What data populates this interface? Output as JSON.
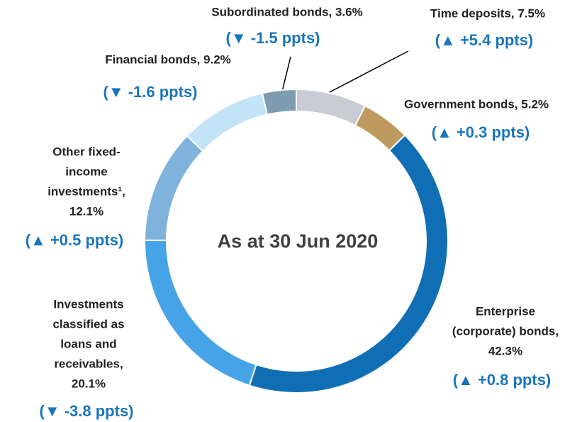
{
  "chart_data": {
    "type": "donut",
    "center_label": "As at 30 Jun 2020",
    "values": [
      7.5,
      5.2,
      42.3,
      20.1,
      12.1,
      9.2,
      3.6
    ],
    "value_labels": [
      [
        "Time deposits, 7.5%"
      ],
      [
        "Government bonds, 5.2%"
      ],
      [
        "Enterprise",
        "(corporate) bonds,",
        "42.3%"
      ],
      [
        "Investments",
        "classified as",
        "loans and",
        "receivables,",
        "20.1%"
      ],
      [
        "Other fixed-",
        "income",
        "investments¹,",
        "12.1%"
      ],
      [
        "Financial bonds, 9.2%"
      ],
      [
        "Subordinated bonds, 3.6%"
      ]
    ],
    "changes": [
      "(▲ +5.4 ppts)",
      "(▲ +0.3 ppts)",
      "(▲ +0.8 ppts)",
      "(▼ -3.8 ppts)",
      "(▲ +0.5 ppts)",
      "(▼ -1.6 ppts)",
      "(▼ -1.5 ppts)"
    ],
    "colors": [
      "#c9ccd4",
      "#bf9a5e",
      "#106eb5",
      "#45a3e6",
      "#7fb3dc",
      "#c3e3f7",
      "#7e9bb0"
    ]
  }
}
